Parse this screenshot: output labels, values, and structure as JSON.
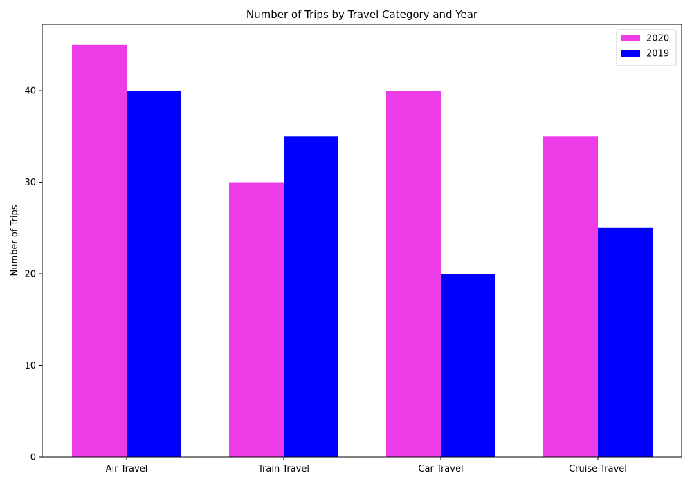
{
  "chart_data": {
    "type": "bar",
    "title": "Number of Trips by Travel Category and Year",
    "xlabel": "",
    "ylabel": "Number of Trips",
    "categories": [
      "Air Travel",
      "Train Travel",
      "Car Travel",
      "Cruise Travel"
    ],
    "series": [
      {
        "name": "2020",
        "values": [
          45,
          30,
          40,
          35
        ],
        "color": "#ee3be8"
      },
      {
        "name": "2019",
        "values": [
          40,
          35,
          20,
          25
        ],
        "color": "#0000ff"
      }
    ],
    "ylim": [
      0,
      47.25
    ],
    "yticks": [
      0,
      10,
      20,
      30,
      40
    ],
    "grid": false,
    "legend_position": "top-right"
  }
}
